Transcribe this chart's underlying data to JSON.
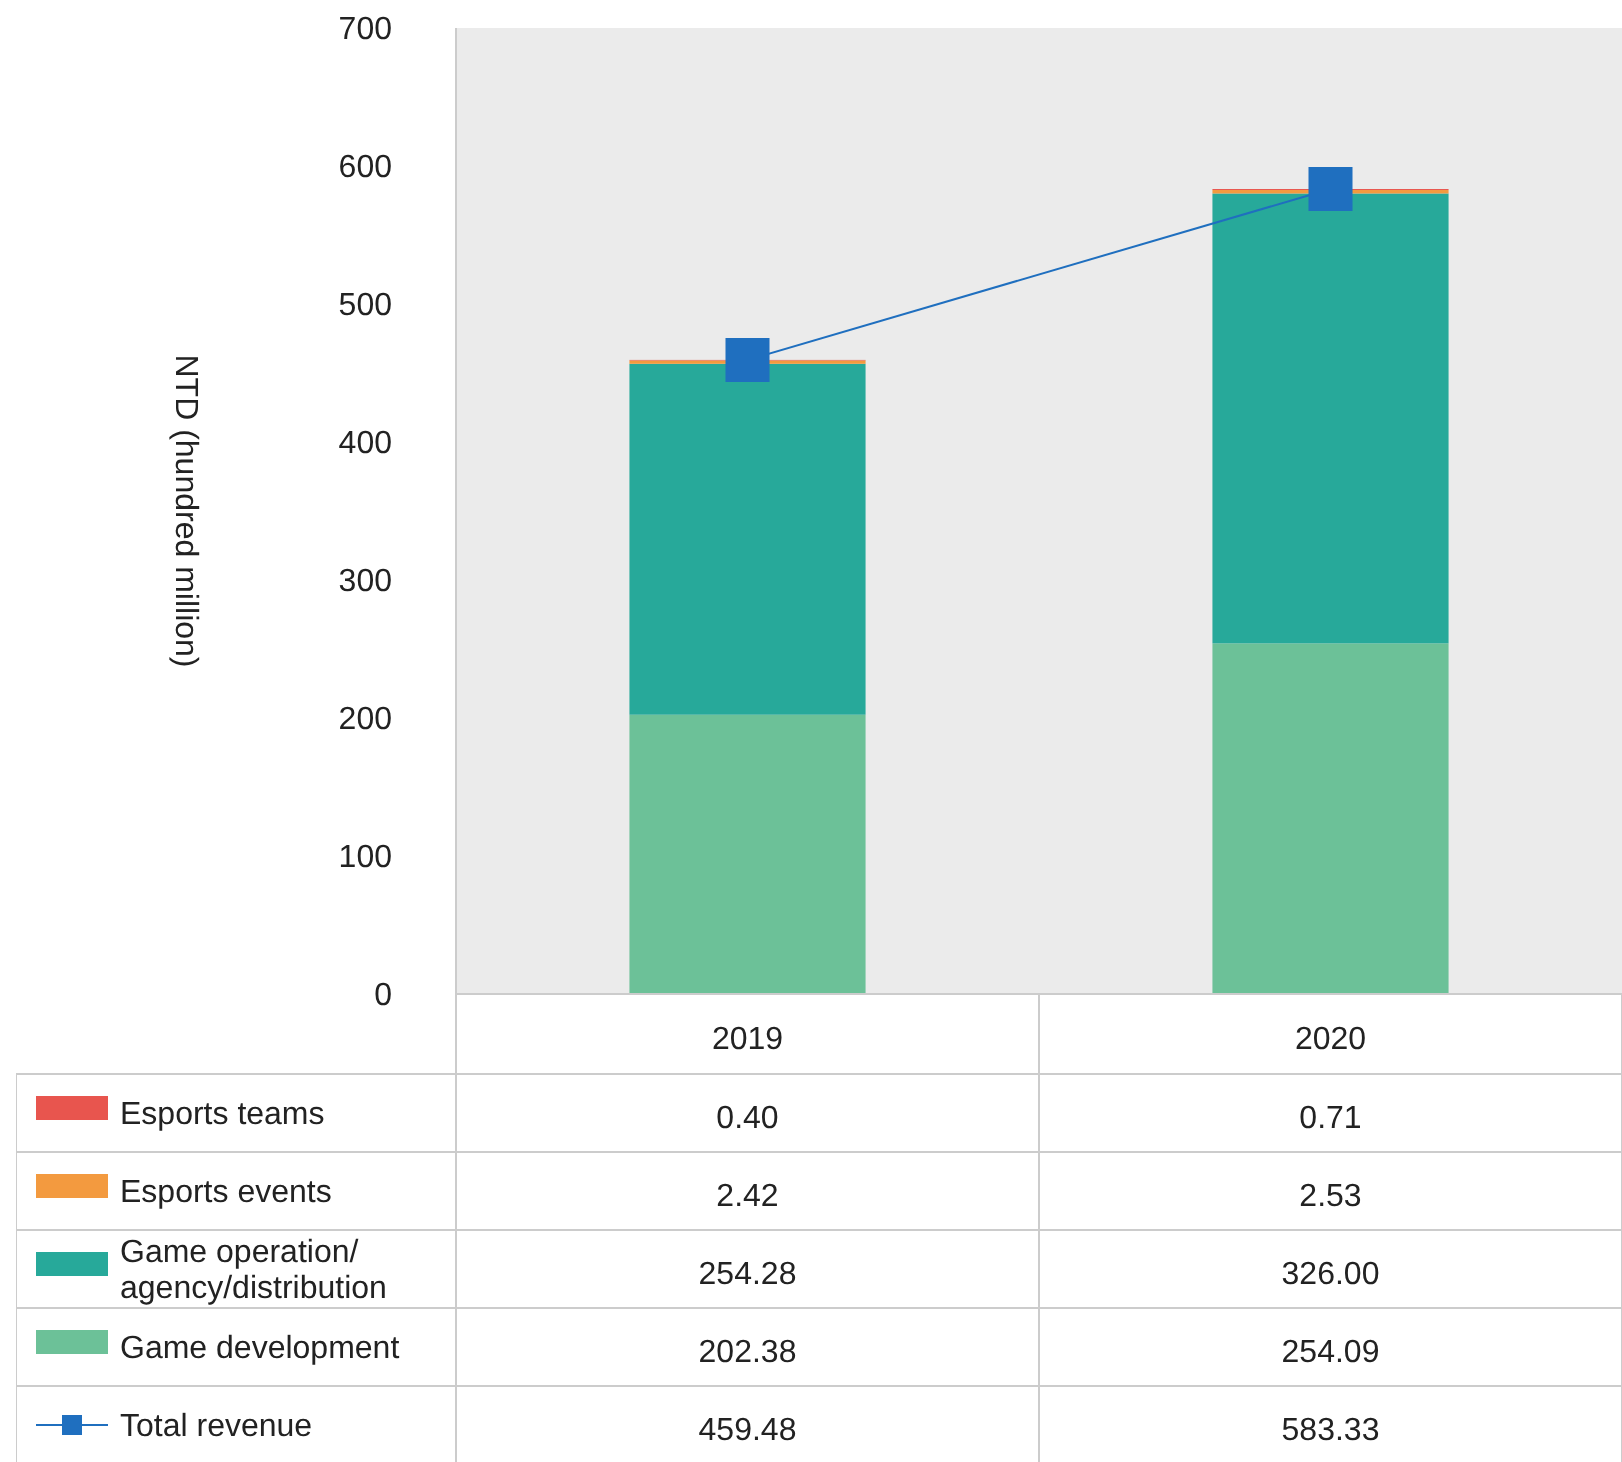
{
  "chart_data": {
    "type": "bar",
    "stacked": true,
    "ylabel": "NTD (hundred million)",
    "categories": [
      "2019",
      "2020"
    ],
    "ylim": [
      0,
      700
    ],
    "yticks": [
      0,
      100,
      200,
      300,
      400,
      500,
      600,
      700
    ],
    "grid": false,
    "legend": "bottom",
    "marker": "square",
    "series": [
      {
        "name": "Game development",
        "color": "#6cc198",
        "values": [
          202.38,
          254.09
        ],
        "value_labels": [
          "202.38",
          "254.09"
        ]
      },
      {
        "name": "Game operation/ agency/distribution",
        "color": "#27a99a",
        "values": [
          254.28,
          326.0
        ],
        "value_labels": [
          "254.28",
          "326.00"
        ]
      },
      {
        "name": "Esports events",
        "color": "#f39a3f",
        "values": [
          2.42,
          2.53
        ],
        "value_labels": [
          "2.42",
          "2.53"
        ]
      },
      {
        "name": "Esports teams",
        "color": "#e8554e",
        "values": [
          0.4,
          0.71
        ],
        "value_labels": [
          "0.40",
          "0.71"
        ]
      },
      {
        "type": "line",
        "name": "Total revenue",
        "color": "#1f6fbf",
        "values": [
          459.48,
          583.33
        ],
        "value_labels": [
          "459.48",
          "583.33"
        ]
      }
    ]
  }
}
